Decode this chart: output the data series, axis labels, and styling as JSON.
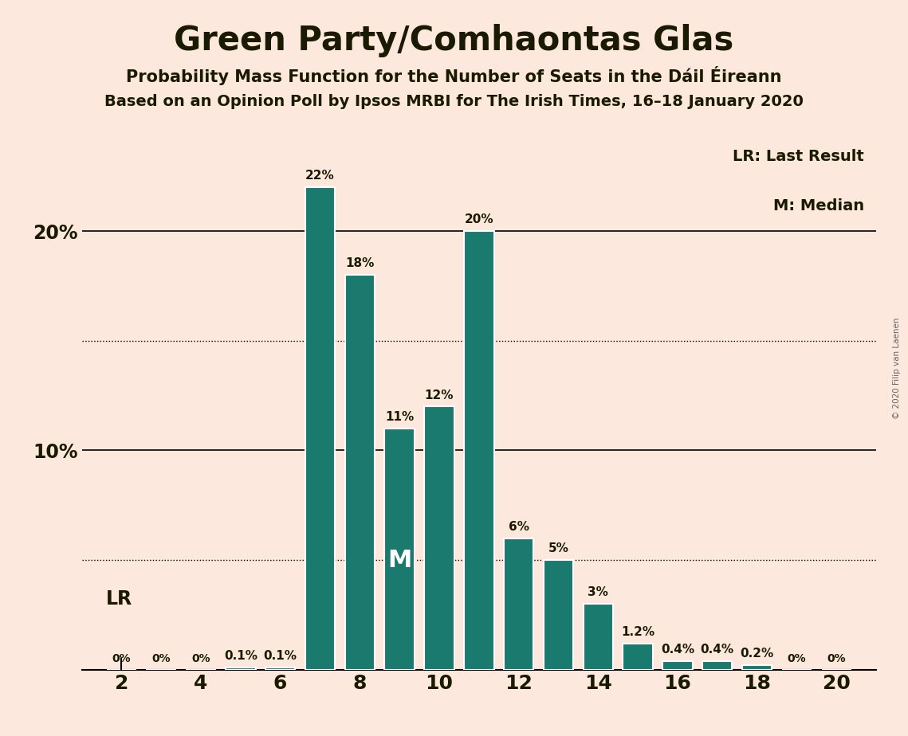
{
  "title": "Green Party/Comhaontas Glas",
  "subtitle1": "Probability Mass Function for the Number of Seats in the Dáil Éireann",
  "subtitle2": "Based on an Opinion Poll by Ipsos MRBI for The Irish Times, 16–18 January 2020",
  "copyright": "© 2020 Filip van Laenen",
  "seats": [
    2,
    3,
    4,
    5,
    6,
    7,
    8,
    9,
    10,
    11,
    12,
    13,
    14,
    15,
    16,
    17,
    18,
    19,
    20
  ],
  "probabilities": [
    0.0,
    0.0,
    0.0,
    0.1,
    0.1,
    22.0,
    18.0,
    11.0,
    12.0,
    20.0,
    6.0,
    5.0,
    3.0,
    1.2,
    0.4,
    0.4,
    0.2,
    0.0,
    0.0
  ],
  "labels": [
    "0%",
    "0%",
    "0%",
    "0.1%",
    "0.1%",
    "22%",
    "18%",
    "11%",
    "12%",
    "20%",
    "6%",
    "5%",
    "3%",
    "1.2%",
    "0.4%",
    "0.4%",
    "0.2%",
    "0%",
    "0%"
  ],
  "bar_color": "#1a7a6e",
  "background_color": "#fce8dc",
  "text_color": "#1a1a00",
  "median_seat": 9,
  "lr_seat": 2,
  "yticks": [
    0,
    5,
    10,
    15,
    20,
    25
  ],
  "ylim": [
    0,
    25
  ],
  "xlim": [
    1.0,
    21.0
  ],
  "dotted_lines": [
    5.0,
    15.0
  ],
  "solid_lines": [
    10.0,
    20.0
  ],
  "legend_lr": "LR: Last Result",
  "legend_m": "M: Median"
}
